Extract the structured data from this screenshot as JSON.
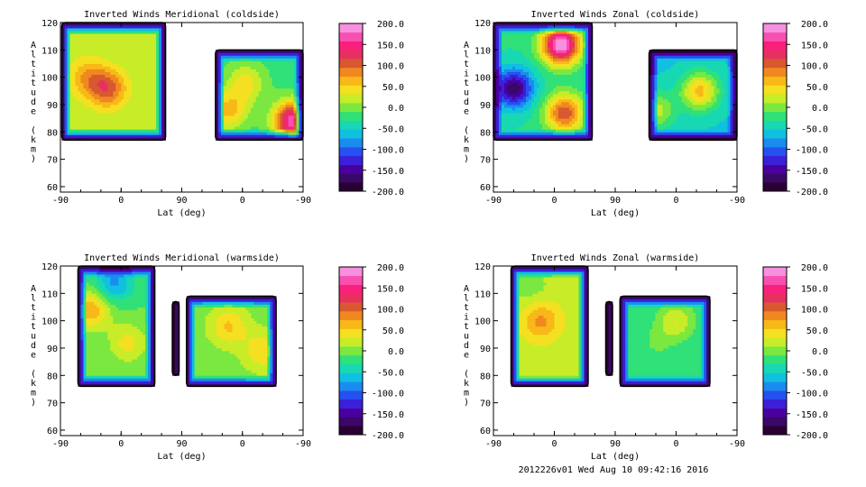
{
  "colors": {
    "colorbar": [
      "#2a0033",
      "#3a0866",
      "#4a00a0",
      "#3a20d8",
      "#2650f0",
      "#1a8cf0",
      "#10c0e0",
      "#18d8b4",
      "#30e078",
      "#7ae840",
      "#c8ec28",
      "#f4e020",
      "#f8b818",
      "#f08820",
      "#d85830",
      "#e83060",
      "#f8207c",
      "#f850b0",
      "#f890e0"
    ],
    "lowfill": "#2a0040",
    "axis": "#000000"
  },
  "chart_data": [
    {
      "type": "heatmap",
      "title": "Inverted Winds Meridional (coldside)",
      "xlabel": "Lat (deg)",
      "ylabel": "Altitude (km)",
      "xticks": [
        "-90",
        "0",
        "90",
        "0",
        "-90"
      ],
      "yticks": [
        "60",
        "70",
        "80",
        "90",
        "100",
        "110",
        "120"
      ],
      "ylim": [
        58,
        120
      ],
      "colorbar_ticks": [
        "200.0",
        "150.0",
        "100.0",
        "50.0",
        "0.0",
        "-50.0",
        "-100.0",
        "-150.0",
        "-200.0"
      ],
      "colorbar_range": [
        -200,
        200
      ],
      "regions": [
        {
          "x0": -88,
          "x1": 66,
          "ybot": 77,
          "ytop": 120,
          "base": 15,
          "centers": [
            {
              "x": -20,
              "y": 96,
              "v": 105
            },
            {
              "x": -50,
              "y": 100,
              "v": 70
            }
          ]
        },
        {
          "x0": 140,
          "x1": 270,
          "ybot": 77,
          "ytop": 110,
          "base": -20,
          "centers": [
            {
              "x": 255,
              "y": 84,
              "v": 175
            },
            {
              "x": 185,
              "y": 98,
              "v": 40
            },
            {
              "x": 160,
              "y": 88,
              "v": 60
            }
          ]
        }
      ]
    },
    {
      "type": "heatmap",
      "title": "Inverted Winds Zonal (coldside)",
      "xlabel": "Lat (deg)",
      "ylabel": "Altitude (km)",
      "xticks": [
        "-90",
        "0",
        "90",
        "0",
        "-90"
      ],
      "yticks": [
        "60",
        "70",
        "80",
        "90",
        "100",
        "110",
        "120"
      ],
      "ylim": [
        58,
        120
      ],
      "colorbar_ticks": [
        "200.0",
        "150.0",
        "100.0",
        "50.0",
        "0.0",
        "-50.0",
        "-100.0",
        "-150.0",
        "-200.0"
      ],
      "colorbar_range": [
        -200,
        200
      ],
      "regions": [
        {
          "x0": -90,
          "x1": 56,
          "ybot": 77,
          "ytop": 120,
          "base": -30,
          "centers": [
            {
              "x": -60,
              "y": 96,
              "v": -170
            },
            {
              "x": 10,
              "y": 112,
              "v": 200
            },
            {
              "x": 15,
              "y": 87,
              "v": 110
            }
          ]
        },
        {
          "x0": 140,
          "x1": 270,
          "ybot": 77,
          "ytop": 110,
          "base": -55,
          "centers": [
            {
              "x": 215,
              "y": 95,
              "v": 60
            },
            {
              "x": 150,
              "y": 88,
              "v": 20
            }
          ]
        }
      ]
    },
    {
      "type": "heatmap",
      "title": "Inverted Winds Meridional (warmside)",
      "xlabel": "Lat (deg)",
      "ylabel": "Altitude (km)",
      "xticks": [
        "-90",
        "0",
        "90",
        "0",
        "-90"
      ],
      "yticks": [
        "60",
        "70",
        "80",
        "90",
        "100",
        "110",
        "120"
      ],
      "ylim": [
        58,
        120
      ],
      "colorbar_ticks": [
        "200.0",
        "150.0",
        "100.0",
        "50.0",
        "0.0",
        "-50.0",
        "-100.0",
        "-150.0",
        "-200.0"
      ],
      "colorbar_range": [
        -200,
        200
      ],
      "regions": [
        {
          "x0": -64,
          "x1": 50,
          "ybot": 76,
          "ytop": 120,
          "base": -10,
          "centers": [
            {
              "x": -45,
              "y": 104,
              "v": 70
            },
            {
              "x": 10,
              "y": 92,
              "v": 40
            },
            {
              "x": -10,
              "y": 114,
              "v": -80
            }
          ]
        },
        {
          "x0": 76,
          "x1": 86,
          "ybot": 80,
          "ytop": 107,
          "base": -60,
          "centers": []
        },
        {
          "x0": 97,
          "x1": 230,
          "ybot": 76,
          "ytop": 109,
          "base": 0,
          "centers": [
            {
              "x": 160,
              "y": 98,
              "v": 55
            },
            {
              "x": 210,
              "y": 89,
              "v": 50
            }
          ]
        }
      ]
    },
    {
      "type": "heatmap",
      "title": "Inverted Winds Zonal (warmside)",
      "xlabel": "Lat (deg)",
      "ylabel": "Altitude (km)",
      "xticks": [
        "-90",
        "0",
        "90",
        "0",
        "-90"
      ],
      "yticks": [
        "60",
        "70",
        "80",
        "90",
        "100",
        "110",
        "120"
      ],
      "ylim": [
        58,
        120
      ],
      "colorbar_ticks": [
        "200.0",
        "150.0",
        "100.0",
        "50.0",
        "0.0",
        "-50.0",
        "-100.0",
        "-150.0",
        "-200.0"
      ],
      "colorbar_range": [
        -200,
        200
      ],
      "regions": [
        {
          "x0": -64,
          "x1": 50,
          "ybot": 76,
          "ytop": 120,
          "base": 20,
          "centers": [
            {
              "x": -20,
              "y": 100,
              "v": 80
            },
            {
              "x": -35,
              "y": 112,
              "v": 0
            }
          ]
        },
        {
          "x0": 76,
          "x1": 86,
          "ybot": 80,
          "ytop": 107,
          "base": -60,
          "centers": []
        },
        {
          "x0": 97,
          "x1": 230,
          "ybot": 76,
          "ytop": 109,
          "base": -30,
          "centers": [
            {
              "x": 180,
              "y": 100,
              "v": 30
            },
            {
              "x": 150,
              "y": 92,
              "v": -10
            }
          ]
        }
      ]
    }
  ],
  "footer": "2012226v01 Wed Aug 10 09:42:16 2016"
}
